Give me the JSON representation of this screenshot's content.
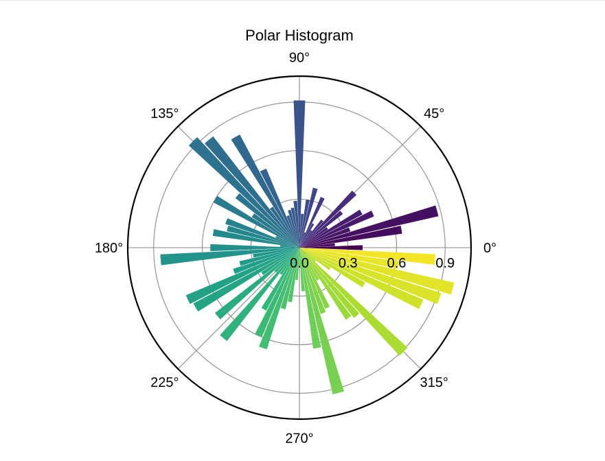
{
  "chart_data": {
    "type": "bar",
    "projection": "polar",
    "title": "Polar Histogram",
    "colormap": "viridis",
    "angle_tick_labels": [
      "0°",
      "45°",
      "90°",
      "135°",
      "180°",
      "225°",
      "270°",
      "315°"
    ],
    "angle_ticks_deg": [
      0,
      45,
      90,
      135,
      180,
      225,
      270,
      315
    ],
    "radial_tick_labels": [
      "0.0",
      "0.3",
      "0.6",
      "0.9"
    ],
    "radial_ticks": [
      0.0,
      0.3,
      0.6,
      0.9
    ],
    "rlim": [
      0,
      1.06
    ],
    "grid": true,
    "bar_width_deg": 4.5,
    "series": [
      {
        "theta_deg": [
          0,
          5,
          10,
          15,
          20,
          25,
          30,
          35,
          40,
          45,
          50,
          55,
          60,
          65,
          70,
          75,
          80,
          85,
          90,
          95,
          100,
          105,
          110,
          115,
          120,
          125,
          130,
          135,
          140,
          145,
          150,
          155,
          160,
          165,
          170,
          175,
          180,
          185,
          190,
          195,
          200,
          205,
          210,
          215,
          220,
          225,
          230,
          235,
          240,
          245,
          250,
          255,
          260,
          265,
          270,
          275,
          280,
          285,
          290,
          295,
          300,
          305,
          310,
          315,
          320,
          325,
          330,
          335,
          340,
          345,
          350,
          355
        ],
        "values": [
          0.39,
          0.22,
          0.64,
          0.88,
          0.33,
          0.5,
          0.44,
          0.21,
          0.34,
          0.48,
          0.22,
          0.13,
          0.17,
          0.34,
          0.1,
          0.38,
          0.3,
          0.21,
          0.91,
          0.29,
          0.25,
          0.24,
          0.21,
          0.53,
          0.79,
          0.3,
          0.87,
          0.93,
          0.5,
          0.35,
          0.6,
          0.16,
          0.48,
          0.46,
          0.54,
          0.12,
          0.55,
          0.86,
          0.29,
          0.38,
          0.43,
          0.76,
          0.74,
          0.28,
          0.66,
          0.21,
          0.73,
          0.2,
          0.44,
          0.6,
          0.66,
          0.39,
          0.34,
          0.2,
          0.12,
          0.27,
          0.63,
          0.93,
          0.43,
          0.41,
          0.23,
          0.53,
          0.55,
          0.91,
          0.13,
          0.23,
          0.46,
          0.83,
          0.92,
          0.98,
          0.62,
          0.84
        ]
      }
    ]
  }
}
